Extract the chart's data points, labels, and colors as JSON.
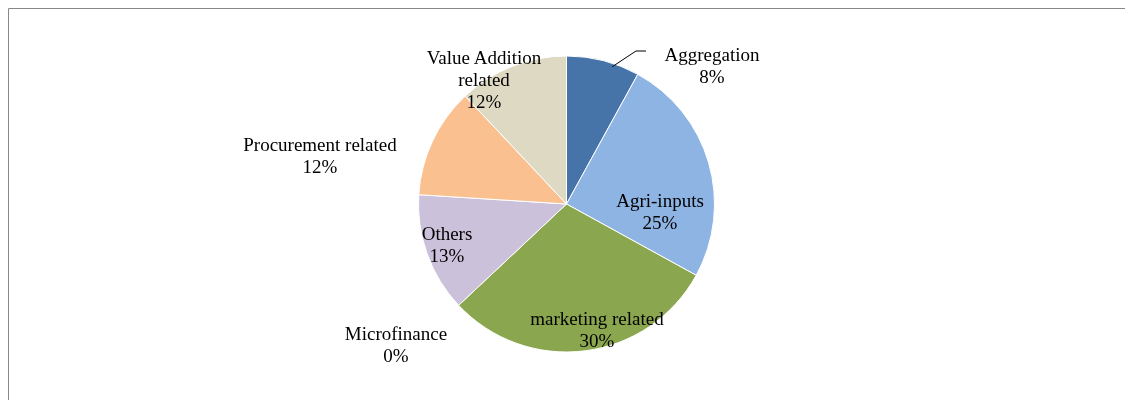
{
  "chart_data": {
    "type": "pie",
    "categories": [
      "Aggregation",
      "Agri-inputs",
      "marketing related",
      "Microfinance",
      "Others",
      "Procurement related",
      "Value Addition related"
    ],
    "values": [
      8,
      25,
      30,
      0,
      13,
      12,
      12
    ],
    "colors": [
      "#4774a8",
      "#8eb4e3",
      "#8aa64e",
      "#4f81bd",
      "#ccc1da",
      "#fac090",
      "#ddd9c3"
    ],
    "value_labels": [
      "8%",
      "25%",
      "30%",
      "0%",
      "13%",
      "12%",
      "12%"
    ]
  }
}
